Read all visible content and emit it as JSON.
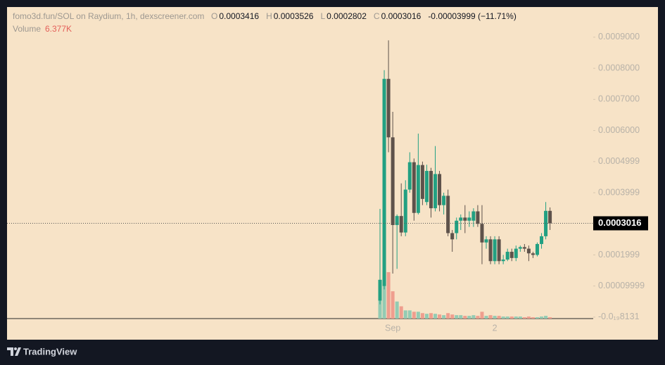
{
  "chart_data": {
    "type": "candlestick",
    "title": "fomo3d.fun/SOL on Raydium, 1h, dexscreener.com",
    "ohlc_legend": [
      {
        "label": "O",
        "value": "0.0003416"
      },
      {
        "label": "H",
        "value": "0.0003526"
      },
      {
        "label": "L",
        "value": "0.0002802"
      },
      {
        "label": "C",
        "value": "0.0003016"
      }
    ],
    "change": "-0.00003999 (−11.71%)",
    "volume_label": "Volume",
    "volume_value": "6.377K",
    "categories": [
      null,
      null,
      null,
      "Sep",
      null,
      null,
      null,
      null,
      null,
      null,
      null,
      null,
      null,
      null,
      null,
      null,
      null,
      null,
      null,
      null,
      null,
      null,
      null,
      null,
      null,
      null,
      null,
      "2",
      null,
      null,
      null,
      null,
      null,
      null,
      null,
      null,
      null,
      null,
      null,
      null,
      null
    ],
    "open": [
      5.3e-05,
      0.0001,
      0.000766,
      0.000578,
      0.000296,
      0.000325,
      0.000272,
      0.00041,
      0.000498,
      0.000335,
      0.000489,
      0.00037,
      0.00047,
      0.00035,
      0.00046,
      0.00036,
      0.00039,
      0.00027,
      0.00027,
      0.00031,
      0.00032,
      0.00031,
      0.00031,
      0.00034,
      0.0003,
      0.00024,
      0.00025,
      0.00018,
      0.00025,
      0.00018,
      0.000185,
      0.00021,
      0.00019,
      0.00022,
      0.000225,
      0.00022,
      0.000205,
      0.0002,
      0.000235,
      0.00026,
      0.0003416
    ],
    "high": [
      0.000348,
      0.000794,
      0.00089,
      0.00066,
      0.00033,
      0.00043,
      0.00044,
      0.00053,
      0.00051,
      0.00059,
      0.0005,
      0.00049,
      0.00048,
      0.00055,
      0.00047,
      0.0004,
      0.00041,
      0.00028,
      0.00032,
      0.00033,
      0.00036,
      0.00034,
      0.00035,
      0.00036,
      0.00036,
      0.00026,
      0.00026,
      0.00026,
      0.00026,
      0.0002,
      0.00022,
      0.00022,
      0.00023,
      0.00023,
      0.000235,
      0.00023,
      0.00021,
      0.00024,
      0.00027,
      0.00037,
      0.0003526
    ],
    "low": [
      4.1e-05,
      8.9e-05,
      0.00053,
      0.00014,
      0.000155,
      0.00026,
      0.00026,
      0.0004,
      0.00031,
      0.00033,
      0.00036,
      0.00036,
      0.00032,
      0.00034,
      0.00034,
      0.00033,
      0.00026,
      0.00021,
      0.00025,
      0.00028,
      0.00027,
      0.00029,
      0.00029,
      0.00029,
      0.00017,
      0.00022,
      0.00017,
      0.00017,
      0.00017,
      0.00017,
      0.00018,
      0.00018,
      0.00018,
      0.00021,
      0.00021,
      0.00018,
      0.00019,
      0.000195,
      0.00022,
      0.00025,
      0.0002802
    ],
    "close": [
      0.00012,
      0.000766,
      0.000578,
      0.000296,
      0.000325,
      0.000272,
      0.00041,
      0.000498,
      0.000335,
      0.000489,
      0.00038,
      0.00047,
      0.00035,
      0.00046,
      0.00036,
      0.00039,
      0.00027,
      0.00025,
      0.00031,
      0.00032,
      0.00031,
      0.00032,
      0.00034,
      0.0003,
      0.00024,
      0.00025,
      0.00018,
      0.00025,
      0.00018,
      0.000185,
      0.00021,
      0.00019,
      0.00022,
      0.000225,
      0.00022,
      0.000205,
      0.0002,
      0.000235,
      0.00026,
      0.0003416,
      0.0003016
    ],
    "volume": [
      144000,
      224000,
      217600,
      128000,
      80000,
      57600,
      38400,
      38400,
      32000,
      32000,
      25600,
      22400,
      25600,
      22400,
      19200,
      16000,
      25600,
      19200,
      16000,
      16000,
      12800,
      12800,
      16000,
      12800,
      32000,
      12800,
      16000,
      12800,
      12800,
      9600,
      9600,
      9600,
      9600,
      9600,
      6400,
      9600,
      6400,
      6400,
      9600,
      12800,
      6377
    ],
    "ylim": [
      -4.8e-06,
      0.000997
    ],
    "yticks": [
      {
        "value": -8.131e-20,
        "label": "-0.0₁₉8131"
      },
      9.999e-05,
      0.0001999,
      0.0003999,
      0.0004999,
      {
        "value": 0.0006,
        "label": "0.0006000"
      },
      {
        "value": 0.0007,
        "label": "0.0007000"
      },
      {
        "value": 0.0008,
        "label": "0.0008000"
      },
      {
        "value": 0.0009,
        "label": "0.0009000"
      }
    ],
    "last_price": 0.0003016,
    "up_color": "#22a082",
    "down_color": "#5e524b",
    "volume_up_color": "#93cbb3",
    "volume_down_color": "#ef9e8e",
    "grid": false
  },
  "footer": {
    "brand": "TradingView"
  }
}
